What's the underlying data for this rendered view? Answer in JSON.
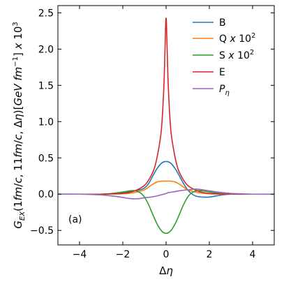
{
  "chart_data": {
    "type": "line",
    "xlabel": "Δη",
    "ylabel": "G_EX(1fm/c, 11fm/c, Δη)[GeV fm⁻¹] x 10³",
    "xlim": [
      -5,
      5
    ],
    "ylim": [
      -0.7,
      2.6
    ],
    "xticks": [
      -4,
      -2,
      0,
      2,
      4
    ],
    "yticks": [
      -0.5,
      0.0,
      0.5,
      1.0,
      1.5,
      2.0,
      2.5
    ],
    "xtick_labels": [
      "−4",
      "−2",
      "0",
      "2",
      "4"
    ],
    "ytick_labels": [
      "−0.5",
      "0.0",
      "0.5",
      "1.0",
      "1.5",
      "2.0",
      "2.5"
    ],
    "panel_label": "(a)",
    "legend_position": "top-right",
    "series": [
      {
        "name": "B",
        "color": "#1f77b4",
        "x": [
          -5,
          -4,
          -3,
          -2.5,
          -2,
          -1.5,
          -1.2,
          -1,
          -0.8,
          -0.6,
          -0.4,
          -0.2,
          0,
          0.2,
          0.4,
          0.6,
          0.8,
          1,
          1.2,
          1.5,
          2,
          2.5,
          3,
          4,
          5
        ],
        "y": [
          0,
          0,
          0,
          0.005,
          0.02,
          0.045,
          0.06,
          0.085,
          0.15,
          0.26,
          0.36,
          0.43,
          0.45,
          0.43,
          0.36,
          0.26,
          0.15,
          0.06,
          0,
          -0.035,
          -0.04,
          -0.015,
          0,
          0,
          0
        ]
      },
      {
        "name": "Q x 10²",
        "color": "#ff7f0e",
        "x": [
          -5,
          -4,
          -3,
          -2,
          -1.5,
          -1,
          -0.8,
          -0.6,
          -0.4,
          -0.2,
          0,
          0.2,
          0.4,
          0.6,
          0.8,
          1,
          1.5,
          2,
          2.5,
          3,
          4,
          5
        ],
        "y": [
          0,
          0,
          0,
          0.005,
          0.02,
          0.06,
          0.1,
          0.14,
          0.17,
          0.18,
          0.18,
          0.18,
          0.17,
          0.14,
          0.1,
          0.06,
          0.02,
          0.005,
          0,
          0,
          0,
          0
        ]
      },
      {
        "name": "S x 10²",
        "color": "#2ca02c",
        "x": [
          -5,
          -4,
          -3,
          -2.5,
          -2,
          -1.5,
          -1.2,
          -1,
          -0.8,
          -0.6,
          -0.4,
          -0.2,
          0,
          0.2,
          0.4,
          0.6,
          0.8,
          1,
          1.2,
          1.5,
          2,
          2.5,
          3,
          4,
          5
        ],
        "y": [
          0,
          0,
          0,
          0.01,
          0.03,
          0.05,
          0.02,
          -0.04,
          -0.15,
          -0.29,
          -0.42,
          -0.51,
          -0.54,
          -0.51,
          -0.42,
          -0.29,
          -0.15,
          -0.04,
          0.02,
          0.05,
          0.03,
          0.01,
          0,
          0,
          0
        ]
      },
      {
        "name": "E",
        "color": "#d62728",
        "x": [
          -5,
          -4,
          -3,
          -2.5,
          -2,
          -1.5,
          -1,
          -0.7,
          -0.5,
          -0.3,
          -0.2,
          -0.1,
          -0.05,
          0,
          0.05,
          0.1,
          0.2,
          0.3,
          0.5,
          0.7,
          1,
          1.5,
          2,
          2.5,
          3,
          4,
          5
        ],
        "y": [
          0,
          0,
          0,
          0.005,
          0.01,
          0.04,
          0.12,
          0.25,
          0.4,
          0.7,
          0.95,
          1.5,
          2.0,
          2.43,
          2.0,
          1.5,
          0.95,
          0.7,
          0.4,
          0.25,
          0.12,
          0.04,
          0.01,
          0.005,
          0,
          0,
          0
        ]
      },
      {
        "name": "P_η",
        "color": "#9467bd",
        "x": [
          -5,
          -4,
          -3,
          -2.5,
          -2,
          -1.7,
          -1.4,
          -1.2,
          -1,
          -0.7,
          -0.5,
          -0.3,
          -0.1,
          0,
          0.1,
          0.3,
          0.5,
          0.7,
          1,
          1.2,
          1.4,
          1.7,
          2,
          2.5,
          3,
          4,
          5
        ],
        "y": [
          0,
          0,
          -0.01,
          -0.025,
          -0.045,
          -0.06,
          -0.065,
          -0.06,
          -0.05,
          -0.04,
          -0.03,
          -0.015,
          0,
          0.01,
          0.02,
          0.03,
          0.04,
          0.05,
          0.06,
          0.065,
          0.07,
          0.06,
          0.045,
          0.025,
          0.01,
          0,
          0
        ]
      }
    ]
  }
}
